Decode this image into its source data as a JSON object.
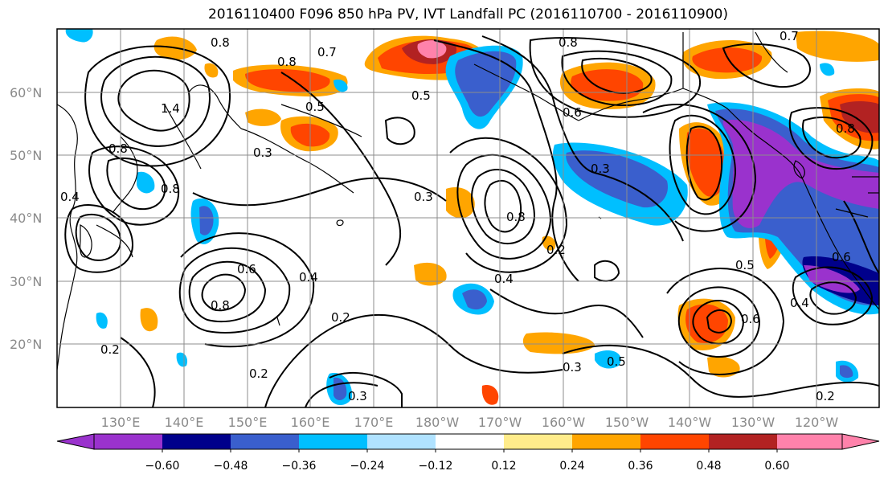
{
  "title": "2016110400 F096 850 hPa PV, IVT Landfall PC (2016110700 - 2016110900)",
  "map": {
    "lat_labels": [
      "60°N",
      "50°N",
      "40°N",
      "30°N",
      "20°N"
    ],
    "lon_labels": [
      "130°E",
      "140°E",
      "150°E",
      "160°E",
      "170°E",
      "180°W",
      "170°W",
      "160°W",
      "150°W",
      "140°W",
      "130°W",
      "120°W"
    ],
    "contour_labels": [
      "0.8",
      "0.7",
      "0.8",
      "0.5",
      "1.4",
      "0.8",
      "0.3",
      "0.4",
      "0.8",
      "0.5",
      "0.3",
      "0.6",
      "0.2",
      "0.6",
      "0.4",
      "0.8",
      "0.8",
      "0.2",
      "0.4",
      "0.3",
      "0.3",
      "0.2",
      "0.5",
      "0.6",
      "0.4",
      "0.2",
      "0.8",
      "0.7",
      "0.6",
      "0.8",
      "0.3",
      "0.5",
      "0.2"
    ]
  },
  "colorbar": {
    "tick_labels": [
      "−0.60",
      "−0.48",
      "−0.36",
      "−0.24",
      "−0.12",
      "0.12",
      "0.24",
      "0.36",
      "0.48",
      "0.60"
    ],
    "colors": [
      "#9a32cd",
      "#00008b",
      "#3a5fcd",
      "#00bfff",
      "#b0e2ff",
      "#ffffff",
      "#ffec8b",
      "#ffa500",
      "#ff4500",
      "#b22222",
      "#ff82ab"
    ]
  }
}
